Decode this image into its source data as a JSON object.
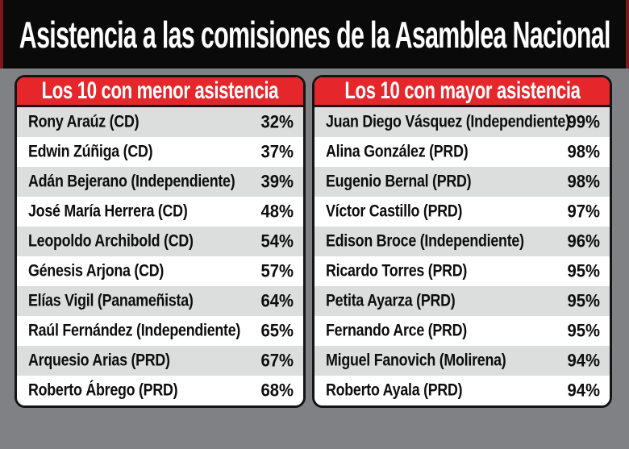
{
  "title": "Asistencia a las comisiones de la Asamblea Nacional",
  "colors": {
    "banner_bg": "#0a0a0a",
    "banner_edge_red": "#7c181a",
    "page_bg": "#808184",
    "card_bg": "#ffffff",
    "card_border": "#141414",
    "header_bg": "#e5262b",
    "header_text": "#ffffff",
    "row_alt_bg": "#dcdddd",
    "row_text": "#0d0d0d"
  },
  "tables": [
    {
      "header": "Los 10 con menor asistencia",
      "rows": [
        {
          "name": "Rony Araúz (CD)",
          "value": "32%"
        },
        {
          "name": "Edwin Zúñiga (CD)",
          "value": "37%"
        },
        {
          "name": "Adán Bejerano (Independiente)",
          "value": "39%"
        },
        {
          "name": "José María Herrera (CD)",
          "value": "48%"
        },
        {
          "name": "Leopoldo Archibold (CD)",
          "value": "54%"
        },
        {
          "name": "Génesis Arjona (CD)",
          "value": "57%"
        },
        {
          "name": "Elías Vigil (Panameñista)",
          "value": "64%"
        },
        {
          "name": "Raúl Fernández (Independiente)",
          "value": "65%"
        },
        {
          "name": "Arquesio Arias (PRD)",
          "value": "67%"
        },
        {
          "name": "Roberto Ábrego (PRD)",
          "value": "68%"
        }
      ]
    },
    {
      "header": "Los 10 con mayor asistencia",
      "rows": [
        {
          "name": "Juan Diego Vásquez (Independiente)",
          "value": "99%"
        },
        {
          "name": "Alina González (PRD)",
          "value": "98%"
        },
        {
          "name": "Eugenio Bernal (PRD)",
          "value": "98%"
        },
        {
          "name": "Víctor Castillo (PRD)",
          "value": "97%"
        },
        {
          "name": "Edison Broce (Independiente)",
          "value": "96%"
        },
        {
          "name": "Ricardo Torres (PRD)",
          "value": "95%"
        },
        {
          "name": "Petita Ayarza (PRD)",
          "value": "95%"
        },
        {
          "name": "Fernando Arce (PRD)",
          "value": "95%"
        },
        {
          "name": "Miguel Fanovich (Molirena)",
          "value": "94%"
        },
        {
          "name": "Roberto Ayala (PRD)",
          "value": "94%"
        }
      ]
    }
  ],
  "chart_data": [
    {
      "type": "table",
      "title": "Los 10 con menor asistencia",
      "categories": [
        "Rony Araúz (CD)",
        "Edwin Zúñiga (CD)",
        "Adán Bejerano (Independiente)",
        "José María Herrera (CD)",
        "Leopoldo Archibold (CD)",
        "Génesis Arjona (CD)",
        "Elías Vigil (Panameñista)",
        "Raúl Fernández (Independiente)",
        "Arquesio Arias (PRD)",
        "Roberto Ábrego (PRD)"
      ],
      "values": [
        32,
        37,
        39,
        48,
        54,
        57,
        64,
        65,
        67,
        68
      ],
      "unit": "%"
    },
    {
      "type": "table",
      "title": "Los 10 con mayor asistencia",
      "categories": [
        "Juan Diego Vásquez (Independiente)",
        "Alina González (PRD)",
        "Eugenio Bernal (PRD)",
        "Víctor Castillo (PRD)",
        "Edison Broce (Independiente)",
        "Ricardo Torres (PRD)",
        "Petita Ayarza (PRD)",
        "Fernando Arce (PRD)",
        "Miguel Fanovich (Molirena)",
        "Roberto Ayala (PRD)"
      ],
      "values": [
        99,
        98,
        98,
        97,
        96,
        95,
        95,
        95,
        94,
        94
      ],
      "unit": "%"
    }
  ]
}
